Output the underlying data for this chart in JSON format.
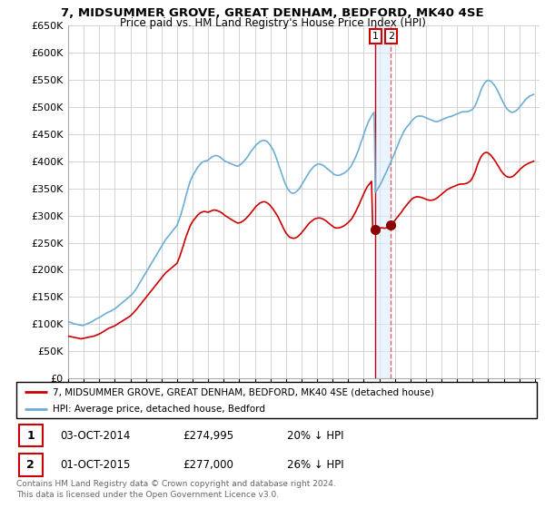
{
  "title": "7, MIDSUMMER GROVE, GREAT DENHAM, BEDFORD, MK40 4SE",
  "subtitle": "Price paid vs. HM Land Registry's House Price Index (HPI)",
  "ylim": [
    0,
    650000
  ],
  "ytick_vals": [
    0,
    50000,
    100000,
    150000,
    200000,
    250000,
    300000,
    350000,
    400000,
    450000,
    500000,
    550000,
    600000,
    650000
  ],
  "xlim_start": 1995.0,
  "xlim_end": 2025.3,
  "hpi_color": "#6baed6",
  "property_color": "#cc0000",
  "marker_color": "#8b0000",
  "vline1_color": "#cc0000",
  "vline2_color": "#e06666",
  "band_color": "#ddeeff",
  "legend_label_property": "7, MIDSUMMER GROVE, GREAT DENHAM, BEDFORD, MK40 4SE (detached house)",
  "legend_label_hpi": "HPI: Average price, detached house, Bedford",
  "transactions": [
    {
      "num": 1,
      "date": "03-OCT-2014",
      "price": "£274,995",
      "hpi": "20% ↓ HPI",
      "year": 2014.75
    },
    {
      "num": 2,
      "date": "01-OCT-2015",
      "price": "£277,000",
      "hpi": "26% ↓ HPI",
      "year": 2015.75
    }
  ],
  "footnote": "Contains HM Land Registry data © Crown copyright and database right 2024.\nThis data is licensed under the Open Government Licence v3.0.",
  "hpi_x": [
    1995.0,
    1995.08,
    1995.17,
    1995.25,
    1995.33,
    1995.42,
    1995.5,
    1995.58,
    1995.67,
    1995.75,
    1995.83,
    1995.92,
    1996.0,
    1996.08,
    1996.17,
    1996.25,
    1996.33,
    1996.42,
    1996.5,
    1996.58,
    1996.67,
    1996.75,
    1996.83,
    1996.92,
    1997.0,
    1997.08,
    1997.17,
    1997.25,
    1997.33,
    1997.42,
    1997.5,
    1997.58,
    1997.67,
    1997.75,
    1997.83,
    1997.92,
    1998.0,
    1998.08,
    1998.17,
    1998.25,
    1998.33,
    1998.42,
    1998.5,
    1998.58,
    1998.67,
    1998.75,
    1998.83,
    1998.92,
    1999.0,
    1999.08,
    1999.17,
    1999.25,
    1999.33,
    1999.42,
    1999.5,
    1999.58,
    1999.67,
    1999.75,
    1999.83,
    1999.92,
    2000.0,
    2000.08,
    2000.17,
    2000.25,
    2000.33,
    2000.42,
    2000.5,
    2000.58,
    2000.67,
    2000.75,
    2000.83,
    2000.92,
    2001.0,
    2001.08,
    2001.17,
    2001.25,
    2001.33,
    2001.42,
    2001.5,
    2001.58,
    2001.67,
    2001.75,
    2001.83,
    2001.92,
    2002.0,
    2002.08,
    2002.17,
    2002.25,
    2002.33,
    2002.42,
    2002.5,
    2002.58,
    2002.67,
    2002.75,
    2002.83,
    2002.92,
    2003.0,
    2003.08,
    2003.17,
    2003.25,
    2003.33,
    2003.42,
    2003.5,
    2003.58,
    2003.67,
    2003.75,
    2003.83,
    2003.92,
    2004.0,
    2004.08,
    2004.17,
    2004.25,
    2004.33,
    2004.42,
    2004.5,
    2004.58,
    2004.67,
    2004.75,
    2004.83,
    2004.92,
    2005.0,
    2005.08,
    2005.17,
    2005.25,
    2005.33,
    2005.42,
    2005.5,
    2005.58,
    2005.67,
    2005.75,
    2005.83,
    2005.92,
    2006.0,
    2006.08,
    2006.17,
    2006.25,
    2006.33,
    2006.42,
    2006.5,
    2006.58,
    2006.67,
    2006.75,
    2006.83,
    2006.92,
    2007.0,
    2007.08,
    2007.17,
    2007.25,
    2007.33,
    2007.42,
    2007.5,
    2007.58,
    2007.67,
    2007.75,
    2007.83,
    2007.92,
    2008.0,
    2008.08,
    2008.17,
    2008.25,
    2008.33,
    2008.42,
    2008.5,
    2008.58,
    2008.67,
    2008.75,
    2008.83,
    2008.92,
    2009.0,
    2009.08,
    2009.17,
    2009.25,
    2009.33,
    2009.42,
    2009.5,
    2009.58,
    2009.67,
    2009.75,
    2009.83,
    2009.92,
    2010.0,
    2010.08,
    2010.17,
    2010.25,
    2010.33,
    2010.42,
    2010.5,
    2010.58,
    2010.67,
    2010.75,
    2010.83,
    2010.92,
    2011.0,
    2011.08,
    2011.17,
    2011.25,
    2011.33,
    2011.42,
    2011.5,
    2011.58,
    2011.67,
    2011.75,
    2011.83,
    2011.92,
    2012.0,
    2012.08,
    2012.17,
    2012.25,
    2012.33,
    2012.42,
    2012.5,
    2012.58,
    2012.67,
    2012.75,
    2012.83,
    2012.92,
    2013.0,
    2013.08,
    2013.17,
    2013.25,
    2013.33,
    2013.42,
    2013.5,
    2013.58,
    2013.67,
    2013.75,
    2013.83,
    2013.92,
    2014.0,
    2014.08,
    2014.17,
    2014.25,
    2014.33,
    2014.42,
    2014.5,
    2014.58,
    2014.67,
    2014.75,
    2014.83,
    2014.92,
    2015.0,
    2015.08,
    2015.17,
    2015.25,
    2015.33,
    2015.42,
    2015.5,
    2015.58,
    2015.67,
    2015.75,
    2015.83,
    2015.92,
    2016.0,
    2016.08,
    2016.17,
    2016.25,
    2016.33,
    2016.42,
    2016.5,
    2016.58,
    2016.67,
    2016.75,
    2016.83,
    2016.92,
    2017.0,
    2017.08,
    2017.17,
    2017.25,
    2017.33,
    2017.42,
    2017.5,
    2017.58,
    2017.67,
    2017.75,
    2017.83,
    2017.92,
    2018.0,
    2018.08,
    2018.17,
    2018.25,
    2018.33,
    2018.42,
    2018.5,
    2018.58,
    2018.67,
    2018.75,
    2018.83,
    2018.92,
    2019.0,
    2019.08,
    2019.17,
    2019.25,
    2019.33,
    2019.42,
    2019.5,
    2019.58,
    2019.67,
    2019.75,
    2019.83,
    2019.92,
    2020.0,
    2020.08,
    2020.17,
    2020.25,
    2020.33,
    2020.42,
    2020.5,
    2020.58,
    2020.67,
    2020.75,
    2020.83,
    2020.92,
    2021.0,
    2021.08,
    2021.17,
    2021.25,
    2021.33,
    2021.42,
    2021.5,
    2021.58,
    2021.67,
    2021.75,
    2021.83,
    2021.92,
    2022.0,
    2022.08,
    2022.17,
    2022.25,
    2022.33,
    2022.42,
    2022.5,
    2022.58,
    2022.67,
    2022.75,
    2022.83,
    2022.92,
    2023.0,
    2023.08,
    2023.17,
    2023.25,
    2023.33,
    2023.42,
    2023.5,
    2023.58,
    2023.67,
    2023.75,
    2023.83,
    2023.92,
    2024.0,
    2024.08,
    2024.17,
    2024.25,
    2024.33,
    2024.42,
    2024.5,
    2024.58,
    2024.67,
    2024.75,
    2024.83,
    2024.92
  ],
  "hpi_y": [
    105000,
    104000,
    103000,
    102000,
    101000,
    100500,
    100000,
    99500,
    99000,
    98500,
    98000,
    97500,
    98000,
    99000,
    100000,
    101000,
    102000,
    103000,
    104000,
    105500,
    107000,
    108500,
    110000,
    111000,
    112000,
    113500,
    115000,
    116500,
    118000,
    119500,
    121000,
    122000,
    123000,
    124000,
    125500,
    127000,
    128000,
    130000,
    132000,
    134000,
    136000,
    138000,
    140000,
    142000,
    144000,
    146000,
    148000,
    150000,
    152000,
    154000,
    157000,
    160000,
    163000,
    167000,
    171000,
    175000,
    179000,
    183000,
    187000,
    191000,
    195000,
    199000,
    203000,
    207000,
    211000,
    215000,
    219000,
    223000,
    227000,
    231000,
    235000,
    239000,
    243000,
    247000,
    251000,
    255000,
    258000,
    261000,
    264000,
    267000,
    270000,
    273000,
    276000,
    279000,
    282000,
    288000,
    295000,
    302000,
    310000,
    319000,
    328000,
    337000,
    346000,
    354000,
    362000,
    368000,
    373000,
    377000,
    381000,
    385000,
    389000,
    392000,
    395000,
    397000,
    399000,
    400000,
    400500,
    401000,
    402000,
    404000,
    406000,
    408000,
    409000,
    410000,
    410500,
    410000,
    409000,
    408000,
    406000,
    404000,
    402000,
    400000,
    399000,
    398000,
    397000,
    396000,
    395000,
    394000,
    393000,
    392000,
    391000,
    391000,
    392000,
    394000,
    396000,
    398000,
    401000,
    404000,
    407000,
    410000,
    414000,
    418000,
    421000,
    424000,
    427000,
    430000,
    432000,
    434000,
    436000,
    437000,
    438000,
    438500,
    438000,
    437000,
    435000,
    432000,
    429000,
    425000,
    421000,
    416000,
    410000,
    403000,
    396000,
    389000,
    382000,
    375000,
    368000,
    361000,
    356000,
    351000,
    347000,
    344000,
    342000,
    341000,
    341000,
    342000,
    344000,
    346000,
    349000,
    352000,
    356000,
    360000,
    364000,
    368000,
    372000,
    376000,
    380000,
    383000,
    386000,
    389000,
    391000,
    393000,
    394000,
    395000,
    395000,
    394000,
    393000,
    392000,
    390000,
    388000,
    386000,
    384000,
    382000,
    380000,
    378000,
    376000,
    375000,
    374000,
    374000,
    374000,
    375000,
    376000,
    377000,
    378000,
    380000,
    382000,
    384000,
    387000,
    390000,
    394000,
    399000,
    404000,
    409000,
    415000,
    421000,
    428000,
    435000,
    442000,
    449000,
    456000,
    463000,
    469000,
    474000,
    479000,
    483000,
    487000,
    490000,
    343000,
    346000,
    350000,
    354000,
    358000,
    363000,
    368000,
    373000,
    378000,
    383000,
    388000,
    394000,
    399000,
    405000,
    410000,
    416000,
    422000,
    428000,
    434000,
    440000,
    445000,
    450000,
    455000,
    459000,
    462000,
    465000,
    468000,
    471000,
    474000,
    477000,
    479000,
    481000,
    482000,
    483000,
    483000,
    483000,
    483000,
    482000,
    481000,
    480000,
    479000,
    478000,
    477000,
    476000,
    475000,
    474000,
    473000,
    473000,
    473000,
    474000,
    475000,
    476000,
    477000,
    478000,
    479000,
    480000,
    481000,
    482000,
    482000,
    483000,
    484000,
    485000,
    486000,
    487000,
    488000,
    489000,
    490000,
    491000,
    491000,
    491000,
    491000,
    491000,
    492000,
    493000,
    494000,
    496000,
    499000,
    503000,
    508000,
    514000,
    521000,
    528000,
    534000,
    539000,
    543000,
    546000,
    548000,
    549000,
    548000,
    547000,
    545000,
    542000,
    539000,
    535000,
    531000,
    526000,
    521000,
    516000,
    511000,
    506000,
    502000,
    498000,
    495000,
    493000,
    491000,
    490000,
    490000,
    491000,
    492000,
    494000,
    496000,
    499000,
    502000,
    505000,
    508000,
    511000,
    514000,
    516000,
    518000,
    520000,
    521000,
    522000,
    523000,
    524000,
    525000,
    526000,
    527000,
    528000,
    529000,
    530000,
    531000,
    532000,
    533000,
    534000,
    545000,
    548000,
    551000,
    553000,
    555000,
    556000,
    557000,
    558000,
    558000,
    558000,
    557000,
    557000,
    556000
  ],
  "prop_x": [
    1995.0,
    1995.08,
    1995.17,
    1995.25,
    1995.33,
    1995.42,
    1995.5,
    1995.58,
    1995.67,
    1995.75,
    1995.83,
    1995.92,
    1996.0,
    1996.08,
    1996.17,
    1996.25,
    1996.33,
    1996.42,
    1996.5,
    1996.58,
    1996.67,
    1996.75,
    1996.83,
    1996.92,
    1997.0,
    1997.08,
    1997.17,
    1997.25,
    1997.33,
    1997.42,
    1997.5,
    1997.58,
    1997.67,
    1997.75,
    1997.83,
    1997.92,
    1998.0,
    1998.08,
    1998.17,
    1998.25,
    1998.33,
    1998.42,
    1998.5,
    1998.58,
    1998.67,
    1998.75,
    1998.83,
    1998.92,
    1999.0,
    1999.08,
    1999.17,
    1999.25,
    1999.33,
    1999.42,
    1999.5,
    1999.58,
    1999.67,
    1999.75,
    1999.83,
    1999.92,
    2000.0,
    2000.08,
    2000.17,
    2000.25,
    2000.33,
    2000.42,
    2000.5,
    2000.58,
    2000.67,
    2000.75,
    2000.83,
    2000.92,
    2001.0,
    2001.08,
    2001.17,
    2001.25,
    2001.33,
    2001.42,
    2001.5,
    2001.58,
    2001.67,
    2001.75,
    2001.83,
    2001.92,
    2002.0,
    2002.08,
    2002.17,
    2002.25,
    2002.33,
    2002.42,
    2002.5,
    2002.58,
    2002.67,
    2002.75,
    2002.83,
    2002.92,
    2003.0,
    2003.08,
    2003.17,
    2003.25,
    2003.33,
    2003.42,
    2003.5,
    2003.58,
    2003.67,
    2003.75,
    2003.83,
    2003.92,
    2004.0,
    2004.08,
    2004.17,
    2004.25,
    2004.33,
    2004.42,
    2004.5,
    2004.58,
    2004.67,
    2004.75,
    2004.83,
    2004.92,
    2005.0,
    2005.08,
    2005.17,
    2005.25,
    2005.33,
    2005.42,
    2005.5,
    2005.58,
    2005.67,
    2005.75,
    2005.83,
    2005.92,
    2006.0,
    2006.08,
    2006.17,
    2006.25,
    2006.33,
    2006.42,
    2006.5,
    2006.58,
    2006.67,
    2006.75,
    2006.83,
    2006.92,
    2007.0,
    2007.08,
    2007.17,
    2007.25,
    2007.33,
    2007.42,
    2007.5,
    2007.58,
    2007.67,
    2007.75,
    2007.83,
    2007.92,
    2008.0,
    2008.08,
    2008.17,
    2008.25,
    2008.33,
    2008.42,
    2008.5,
    2008.58,
    2008.67,
    2008.75,
    2008.83,
    2008.92,
    2009.0,
    2009.08,
    2009.17,
    2009.25,
    2009.33,
    2009.42,
    2009.5,
    2009.58,
    2009.67,
    2009.75,
    2009.83,
    2009.92,
    2010.0,
    2010.08,
    2010.17,
    2010.25,
    2010.33,
    2010.42,
    2010.5,
    2010.58,
    2010.67,
    2010.75,
    2010.83,
    2010.92,
    2011.0,
    2011.08,
    2011.17,
    2011.25,
    2011.33,
    2011.42,
    2011.5,
    2011.58,
    2011.67,
    2011.75,
    2011.83,
    2011.92,
    2012.0,
    2012.08,
    2012.17,
    2012.25,
    2012.33,
    2012.42,
    2012.5,
    2012.58,
    2012.67,
    2012.75,
    2012.83,
    2012.92,
    2013.0,
    2013.08,
    2013.17,
    2013.25,
    2013.33,
    2013.42,
    2013.5,
    2013.58,
    2013.67,
    2013.75,
    2013.83,
    2013.92,
    2014.0,
    2014.08,
    2014.17,
    2014.25,
    2014.33,
    2014.42,
    2014.5,
    2014.58,
    2014.67,
    2014.75,
    2014.83,
    2014.92,
    2015.0,
    2015.08,
    2015.17,
    2015.25,
    2015.33,
    2015.42,
    2015.5,
    2015.58,
    2015.67,
    2015.75,
    2015.83,
    2015.92,
    2016.0,
    2016.08,
    2016.17,
    2016.25,
    2016.33,
    2016.42,
    2016.5,
    2016.58,
    2016.67,
    2016.75,
    2016.83,
    2016.92,
    2017.0,
    2017.08,
    2017.17,
    2017.25,
    2017.33,
    2017.42,
    2017.5,
    2017.58,
    2017.67,
    2017.75,
    2017.83,
    2017.92,
    2018.0,
    2018.08,
    2018.17,
    2018.25,
    2018.33,
    2018.42,
    2018.5,
    2018.58,
    2018.67,
    2018.75,
    2018.83,
    2018.92,
    2019.0,
    2019.08,
    2019.17,
    2019.25,
    2019.33,
    2019.42,
    2019.5,
    2019.58,
    2019.67,
    2019.75,
    2019.83,
    2019.92,
    2020.0,
    2020.08,
    2020.17,
    2020.25,
    2020.33,
    2020.42,
    2020.5,
    2020.58,
    2020.67,
    2020.75,
    2020.83,
    2020.92,
    2021.0,
    2021.08,
    2021.17,
    2021.25,
    2021.33,
    2021.42,
    2021.5,
    2021.58,
    2021.67,
    2021.75,
    2021.83,
    2021.92,
    2022.0,
    2022.08,
    2022.17,
    2022.25,
    2022.33,
    2022.42,
    2022.5,
    2022.58,
    2022.67,
    2022.75,
    2022.83,
    2022.92,
    2023.0,
    2023.08,
    2023.17,
    2023.25,
    2023.33,
    2023.42,
    2023.5,
    2023.58,
    2023.67,
    2023.75,
    2023.83,
    2023.92,
    2024.0,
    2024.08,
    2024.17,
    2024.25,
    2024.33,
    2024.42,
    2024.5,
    2024.58,
    2024.67,
    2024.75,
    2024.83,
    2024.92
  ],
  "prop_y": [
    78000,
    77500,
    77000,
    76500,
    76000,
    75500,
    75000,
    74500,
    74000,
    73500,
    73000,
    73500,
    74000,
    74500,
    75000,
    75500,
    76000,
    76500,
    77000,
    77500,
    78000,
    79000,
    80000,
    81000,
    82000,
    83000,
    84500,
    86000,
    87500,
    89000,
    90500,
    92000,
    93000,
    94000,
    95000,
    96000,
    97000,
    98500,
    100000,
    101500,
    103000,
    104500,
    106000,
    107500,
    109000,
    110500,
    112000,
    113500,
    115000,
    117500,
    120000,
    122500,
    125000,
    128000,
    131000,
    134000,
    137000,
    140000,
    143000,
    146000,
    149000,
    152000,
    155000,
    158000,
    161000,
    164000,
    167000,
    170000,
    173000,
    176000,
    179000,
    182000,
    185000,
    188000,
    191000,
    194000,
    196000,
    198000,
    200000,
    202000,
    204000,
    206000,
    208000,
    210000,
    212000,
    218000,
    224000,
    231000,
    238000,
    246000,
    254000,
    261000,
    268000,
    274000,
    280000,
    285000,
    289000,
    292000,
    295000,
    298000,
    301000,
    303000,
    305000,
    306000,
    307000,
    307500,
    307000,
    306500,
    306000,
    307000,
    308000,
    309000,
    310000,
    310000,
    309500,
    309000,
    308000,
    307000,
    305500,
    304000,
    302000,
    300000,
    298500,
    297000,
    295500,
    294000,
    292500,
    291000,
    289500,
    288000,
    287000,
    286000,
    286500,
    287000,
    288500,
    290000,
    292000,
    294000,
    296500,
    299000,
    302000,
    305000,
    308000,
    311000,
    314000,
    317000,
    319000,
    321000,
    323000,
    324000,
    325000,
    325500,
    325000,
    324000,
    322500,
    320500,
    318000,
    315000,
    312000,
    308500,
    305000,
    301000,
    297000,
    292000,
    287000,
    282000,
    277000,
    272000,
    268000,
    265000,
    262000,
    260000,
    259000,
    258500,
    258000,
    258500,
    259500,
    261000,
    263000,
    265500,
    268000,
    271000,
    274000,
    277000,
    280000,
    283000,
    286000,
    288000,
    290000,
    292000,
    293500,
    294500,
    295000,
    295500,
    295500,
    295000,
    294000,
    293000,
    291500,
    290000,
    288000,
    286000,
    284000,
    282000,
    280000,
    278500,
    277500,
    277000,
    277000,
    277500,
    278000,
    279000,
    280000,
    281500,
    283000,
    285000,
    287000,
    289500,
    292000,
    295000,
    299000,
    303500,
    308000,
    313000,
    318000,
    323500,
    329000,
    334500,
    340000,
    345000,
    350000,
    354000,
    357000,
    360000,
    363000,
    274995,
    274995,
    274995,
    275500,
    276000,
    276500,
    277000,
    277500,
    277000,
    276500,
    277000,
    278000,
    279500,
    281000,
    283000,
    285000,
    288000,
    291000,
    294000,
    297000,
    300000,
    303000,
    306000,
    309500,
    313000,
    316000,
    319000,
    322000,
    325000,
    327500,
    330000,
    332000,
    333000,
    334000,
    334500,
    334500,
    334000,
    333500,
    333000,
    332000,
    331000,
    330000,
    329000,
    328500,
    328000,
    328000,
    328500,
    329000,
    330000,
    331500,
    333000,
    335000,
    337000,
    339000,
    341000,
    343000,
    345000,
    347000,
    348500,
    350000,
    351000,
    352000,
    353000,
    354000,
    355000,
    356000,
    357000,
    357500,
    358000,
    358000,
    358000,
    358500,
    359000,
    360000,
    361500,
    363000,
    366000,
    370000,
    375000,
    381000,
    388000,
    395000,
    401000,
    406000,
    410000,
    413000,
    415000,
    416000,
    416000,
    415000,
    413000,
    411000,
    408000,
    405000,
    401500,
    398000,
    394000,
    390000,
    386000,
    382000,
    379000,
    376000,
    374000,
    372000,
    371000,
    370500,
    370500,
    371000,
    372000,
    374000,
    376000,
    378500,
    381000,
    383500,
    386000,
    388000,
    390000,
    392000,
    393500,
    395000,
    396000,
    397000,
    398000,
    399000,
    400000,
    401000,
    401500,
    402000,
    402500,
    403000,
    403500,
    404000,
    404500,
    405000,
    406000,
    407000,
    408000,
    409000,
    410000,
    410000,
    409500,
    409000,
    408500,
    408000,
    407500,
    407000,
    406500
  ]
}
